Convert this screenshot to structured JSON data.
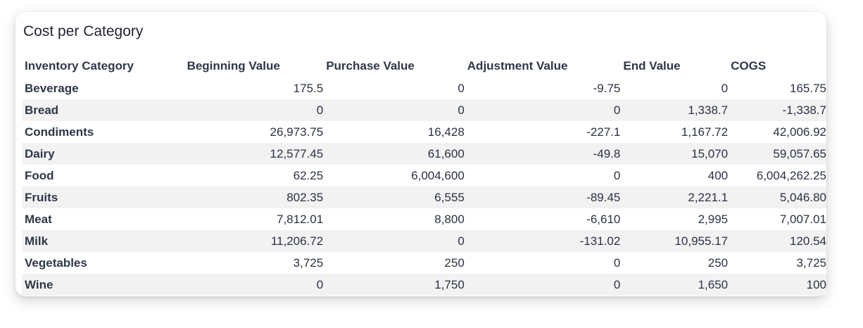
{
  "card": {
    "title": "Cost per Category"
  },
  "table": {
    "headers": [
      "Inventory Category",
      "Beginning Value",
      "Purchase Value",
      "Adjustment Value",
      "End Value",
      "COGS"
    ],
    "rows": [
      [
        "Beverage",
        "175.5",
        "0",
        "-9.75",
        "0",
        "165.75"
      ],
      [
        "Bread",
        "0",
        "0",
        "0",
        "1,338.7",
        "-1,338.7"
      ],
      [
        "Condiments",
        "26,973.75",
        "16,428",
        "-227.1",
        "1,167.72",
        "42,006.92"
      ],
      [
        "Dairy",
        "12,577.45",
        "61,600",
        "-49.8",
        "15,070",
        "59,057.65"
      ],
      [
        "Food",
        "62.25",
        "6,004,600",
        "0",
        "400",
        "6,004,262.25"
      ],
      [
        "Fruits",
        "802.35",
        "6,555",
        "-89.45",
        "2,221.1",
        "5,046.80"
      ],
      [
        "Meat",
        "7,812.01",
        "8,800",
        "-6,610",
        "2,995",
        "7,007.01"
      ],
      [
        "Milk",
        "11,206.72",
        "0",
        "-131.02",
        "10,955.17",
        "120.54"
      ],
      [
        "Vegetables",
        "3,725",
        "250",
        "0",
        "250",
        "3,725"
      ],
      [
        "Wine",
        "0",
        "1,750",
        "0",
        "1,650",
        "100"
      ]
    ]
  }
}
